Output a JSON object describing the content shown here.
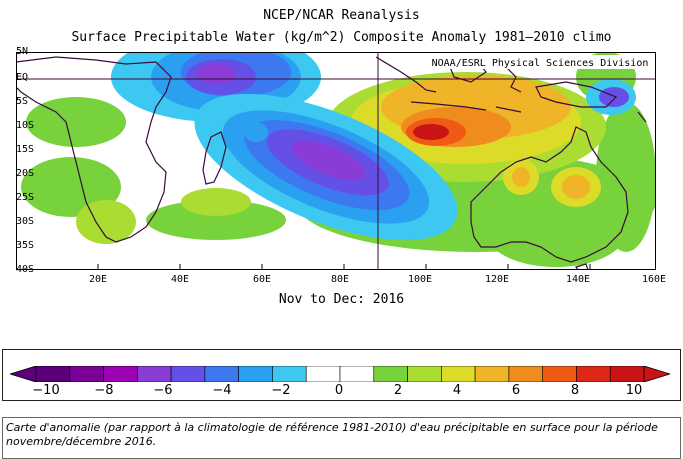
{
  "header": {
    "title_line1": "NCEP/NCAR Reanalysis",
    "title_line2": "Surface Precipitable Water (kg/m^2) Composite Anomaly 1981–2010 climo"
  },
  "map": {
    "credit": "NOAA/ESRL Physical Sciences Division",
    "lat_labels": [
      "5N",
      "EQ",
      "5S",
      "10S",
      "15S",
      "20S",
      "25S",
      "30S",
      "35S",
      "40S"
    ],
    "lon_labels": [
      "20E",
      "40E",
      "60E",
      "80E",
      "100E",
      "120E",
      "140E",
      "160E"
    ],
    "period": "Nov to Dec: 2016",
    "lat_range": [
      -40,
      5
    ],
    "lon_range": [
      5,
      160
    ],
    "regions_shown": [
      "Southern Africa",
      "Madagascar",
      "Indian Ocean",
      "Indonesia",
      "Australia"
    ]
  },
  "colorbar": {
    "labels": [
      "−10",
      "−8",
      "−6",
      "−4",
      "−2",
      "0",
      "2",
      "4",
      "6",
      "8",
      "10"
    ],
    "colors": [
      "#5b0078",
      "#7a0096",
      "#9e00b4",
      "#8a3cd6",
      "#6450e6",
      "#3c78f0",
      "#2ca0f0",
      "#3cc8f0",
      "#ffffff",
      "#ffffff",
      "#78d23c",
      "#aadc32",
      "#dcdc28",
      "#f0b428",
      "#f08c1e",
      "#f05a14",
      "#dc2814",
      "#c81414"
    ],
    "min": -10,
    "max": 10
  },
  "caption": {
    "text": "Carte d'anomalie (par rapport à la climatologie de référence 1981-2010) d'eau précipitable en surface pour la période novembre/décembre 2016."
  }
}
